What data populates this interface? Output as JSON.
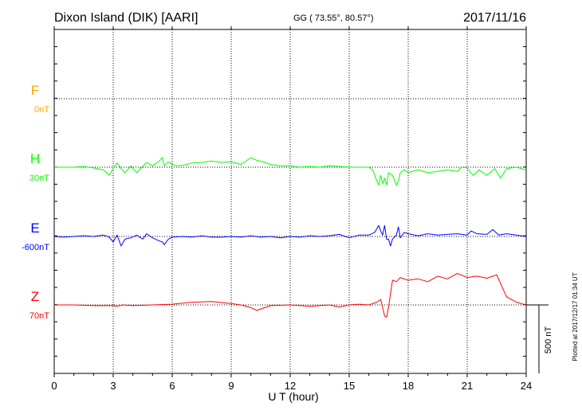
{
  "header": {
    "station": "Dixon Island (DIK)  [AARI]",
    "coords": "GG ( 73.55°,  80.57°)",
    "date": "2017/11/16"
  },
  "side_note": "Plotted at 2017/12/17 01:34 UT",
  "colors": {
    "F": "#ffa500",
    "H": "#00ff00",
    "E": "#0000ff",
    "Z": "#ff0000",
    "axis": "#000000",
    "grid": "#000000"
  },
  "chart_data": {
    "type": "line",
    "title": "Dixon Island (DIK)  [AARI]",
    "xlabel": "U T (hour)",
    "xlim": [
      0,
      24
    ],
    "x_ticks": [
      "0",
      "3",
      "6",
      "9",
      "12",
      "15",
      "18",
      "21",
      "24"
    ],
    "grid": "dotted",
    "scale_bar": {
      "label": "500 nT",
      "value_nT": 500
    },
    "series": [
      {
        "name": "F",
        "baseline_label": "0nT",
        "color": "#ffa500",
        "x": [],
        "values": []
      },
      {
        "name": "H",
        "baseline_label": "30nT",
        "color": "#00ff00",
        "x": [
          0,
          0.5,
          1,
          1.5,
          2,
          2.5,
          2.8,
          3,
          3.2,
          3.4,
          3.6,
          3.9,
          4.2,
          4.5,
          4.7,
          5,
          5.3,
          5.5,
          5.6,
          5.8,
          6,
          6.3,
          6.6,
          7,
          7.5,
          8,
          8.5,
          9,
          9.5,
          10,
          10.3,
          10.6,
          11,
          11.5,
          12,
          12.5,
          13,
          13.5,
          14,
          14.5,
          15,
          15.5,
          16,
          16.2,
          16.4,
          16.5,
          16.6,
          16.7,
          16.8,
          16.9,
          17,
          17.2,
          17.4,
          17.5,
          17.6,
          17.8,
          18,
          18.5,
          19,
          19.5,
          20,
          20.5,
          20.7,
          21,
          21.3,
          21.6,
          22,
          22.4,
          22.7,
          23,
          23.5,
          24
        ],
        "values": [
          0,
          0,
          0,
          5,
          -5,
          -20,
          -60,
          -10,
          30,
          -10,
          -40,
          10,
          -40,
          5,
          35,
          10,
          40,
          70,
          10,
          40,
          20,
          10,
          15,
          30,
          35,
          45,
          35,
          40,
          20,
          70,
          50,
          40,
          20,
          10,
          10,
          0,
          5,
          0,
          10,
          5,
          0,
          0,
          0,
          -20,
          -100,
          -130,
          -60,
          -120,
          -80,
          -130,
          -40,
          -60,
          -130,
          -100,
          -40,
          -20,
          -40,
          -20,
          -40,
          -30,
          -20,
          -30,
          0,
          -5,
          -60,
          -20,
          -60,
          -10,
          -80,
          -10,
          0,
          -20
        ]
      },
      {
        "name": "E",
        "baseline_label": "-600nT",
        "color": "#0000ff",
        "x": [
          0,
          0.5,
          1,
          1.5,
          2,
          2.5,
          2.8,
          3,
          3.2,
          3.4,
          3.6,
          3.9,
          4.2,
          4.5,
          4.7,
          5,
          5.3,
          5.5,
          5.6,
          5.8,
          6,
          6.5,
          7,
          7.5,
          8,
          8.5,
          9,
          9.5,
          10,
          10.5,
          11,
          11.5,
          12,
          12.5,
          13,
          13.5,
          14,
          14.5,
          15,
          15.5,
          16,
          16.3,
          16.5,
          16.6,
          16.7,
          16.8,
          16.9,
          17,
          17.1,
          17.2,
          17.4,
          17.5,
          17.6,
          17.8,
          18,
          18.5,
          19,
          19.5,
          20,
          20.5,
          21,
          21.2,
          21.5,
          22,
          22.3,
          22.6,
          23,
          23.5,
          24
        ],
        "values": [
          0,
          -5,
          0,
          5,
          0,
          10,
          -5,
          -40,
          10,
          -70,
          -20,
          -10,
          10,
          -20,
          20,
          -10,
          -30,
          -40,
          -60,
          -20,
          -5,
          0,
          -5,
          5,
          -5,
          -5,
          0,
          -5,
          5,
          -5,
          0,
          -10,
          0,
          -5,
          5,
          0,
          5,
          15,
          -10,
          10,
          10,
          30,
          80,
          40,
          10,
          80,
          -20,
          -20,
          -70,
          -20,
          10,
          70,
          -10,
          30,
          20,
          5,
          20,
          10,
          15,
          20,
          10,
          40,
          20,
          15,
          50,
          10,
          20,
          10,
          0
        ]
      },
      {
        "name": "Z",
        "baseline_label": "70nT",
        "color": "#ff0000",
        "x": [
          0,
          1,
          2,
          3,
          3.2,
          3.5,
          4,
          5,
          6,
          7,
          8,
          9,
          9.5,
          10,
          10.3,
          11,
          12,
          13,
          14,
          14.5,
          15,
          15.5,
          16,
          16.4,
          16.6,
          16.8,
          16.9,
          17,
          17.2,
          17.4,
          17.6,
          18,
          18.5,
          19,
          19.5,
          20,
          20.5,
          21,
          21.5,
          22,
          22.5,
          23,
          23.5,
          24
        ],
        "values": [
          0,
          0,
          -5,
          -5,
          -10,
          0,
          -5,
          0,
          5,
          20,
          25,
          10,
          0,
          -20,
          -40,
          -5,
          0,
          -10,
          0,
          -15,
          0,
          5,
          0,
          20,
          40,
          -80,
          -90,
          -20,
          180,
          170,
          200,
          180,
          190,
          170,
          210,
          190,
          230,
          200,
          210,
          195,
          220,
          60,
          20,
          0
        ]
      }
    ]
  }
}
